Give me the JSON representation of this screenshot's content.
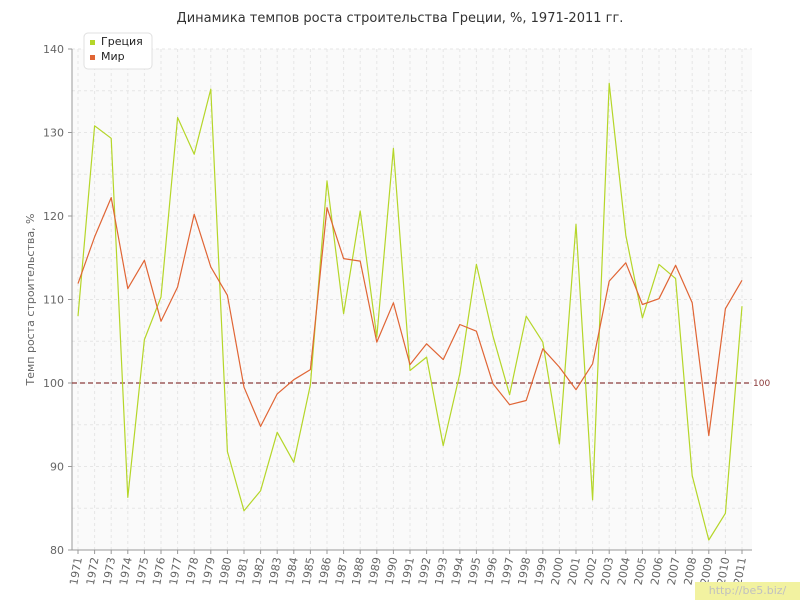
{
  "chart_data": {
    "type": "line",
    "title": "Динамика темпов роста строительства Греции, %, 1971-2011 гг.",
    "ylabel": "Темп роста строительства, %",
    "xlabel": "",
    "ylim": [
      80,
      140
    ],
    "yticks": [
      80,
      90,
      100,
      110,
      120,
      130,
      140
    ],
    "x": [
      "1971",
      "1972",
      "1973",
      "1974",
      "1975",
      "1976",
      "1977",
      "1978",
      "1979",
      "1980",
      "1981",
      "1982",
      "1983",
      "1984",
      "1985",
      "1986",
      "1987",
      "1988",
      "1989",
      "1990",
      "1991",
      "1992",
      "1993",
      "1994",
      "1995",
      "1996",
      "1997",
      "1998",
      "1999",
      "2000",
      "2001",
      "2002",
      "2003",
      "2004",
      "2005",
      "2006",
      "2007",
      "2008",
      "2009",
      "2010",
      "2011"
    ],
    "series": [
      {
        "name": "Греция",
        "color": "#b5d629",
        "values": [
          108.0,
          130.8,
          129.3,
          86.3,
          105.2,
          110.3,
          131.8,
          127.4,
          135.2,
          91.8,
          84.7,
          87.1,
          94.1,
          90.5,
          99.8,
          124.2,
          108.3,
          120.6,
          105.5,
          128.1,
          101.5,
          103.1,
          92.5,
          101.1,
          114.2,
          105.6,
          98.6,
          108.0,
          104.9,
          92.7,
          119.0,
          86.0,
          135.9,
          117.7,
          107.8,
          114.2,
          112.5,
          88.9,
          81.2,
          84.4,
          109.2
        ]
      },
      {
        "name": "Мир",
        "color": "#e06535",
        "values": [
          111.9,
          117.5,
          122.2,
          111.3,
          114.7,
          107.4,
          111.5,
          120.2,
          113.9,
          110.5,
          99.5,
          94.8,
          98.7,
          100.4,
          101.6,
          121.0,
          114.9,
          114.6,
          104.9,
          109.6,
          102.2,
          104.7,
          102.8,
          107.0,
          106.2,
          99.9,
          97.4,
          97.9,
          104.1,
          101.9,
          99.2,
          102.3,
          112.2,
          114.4,
          109.4,
          110.1,
          114.1,
          109.6,
          93.7,
          108.9,
          112.3
        ]
      }
    ],
    "reference_line": {
      "value": 100,
      "label": "100",
      "color": "#8b3a3a"
    },
    "grid": true,
    "legend_position": "top-left"
  },
  "watermark": "http://be5.biz/"
}
